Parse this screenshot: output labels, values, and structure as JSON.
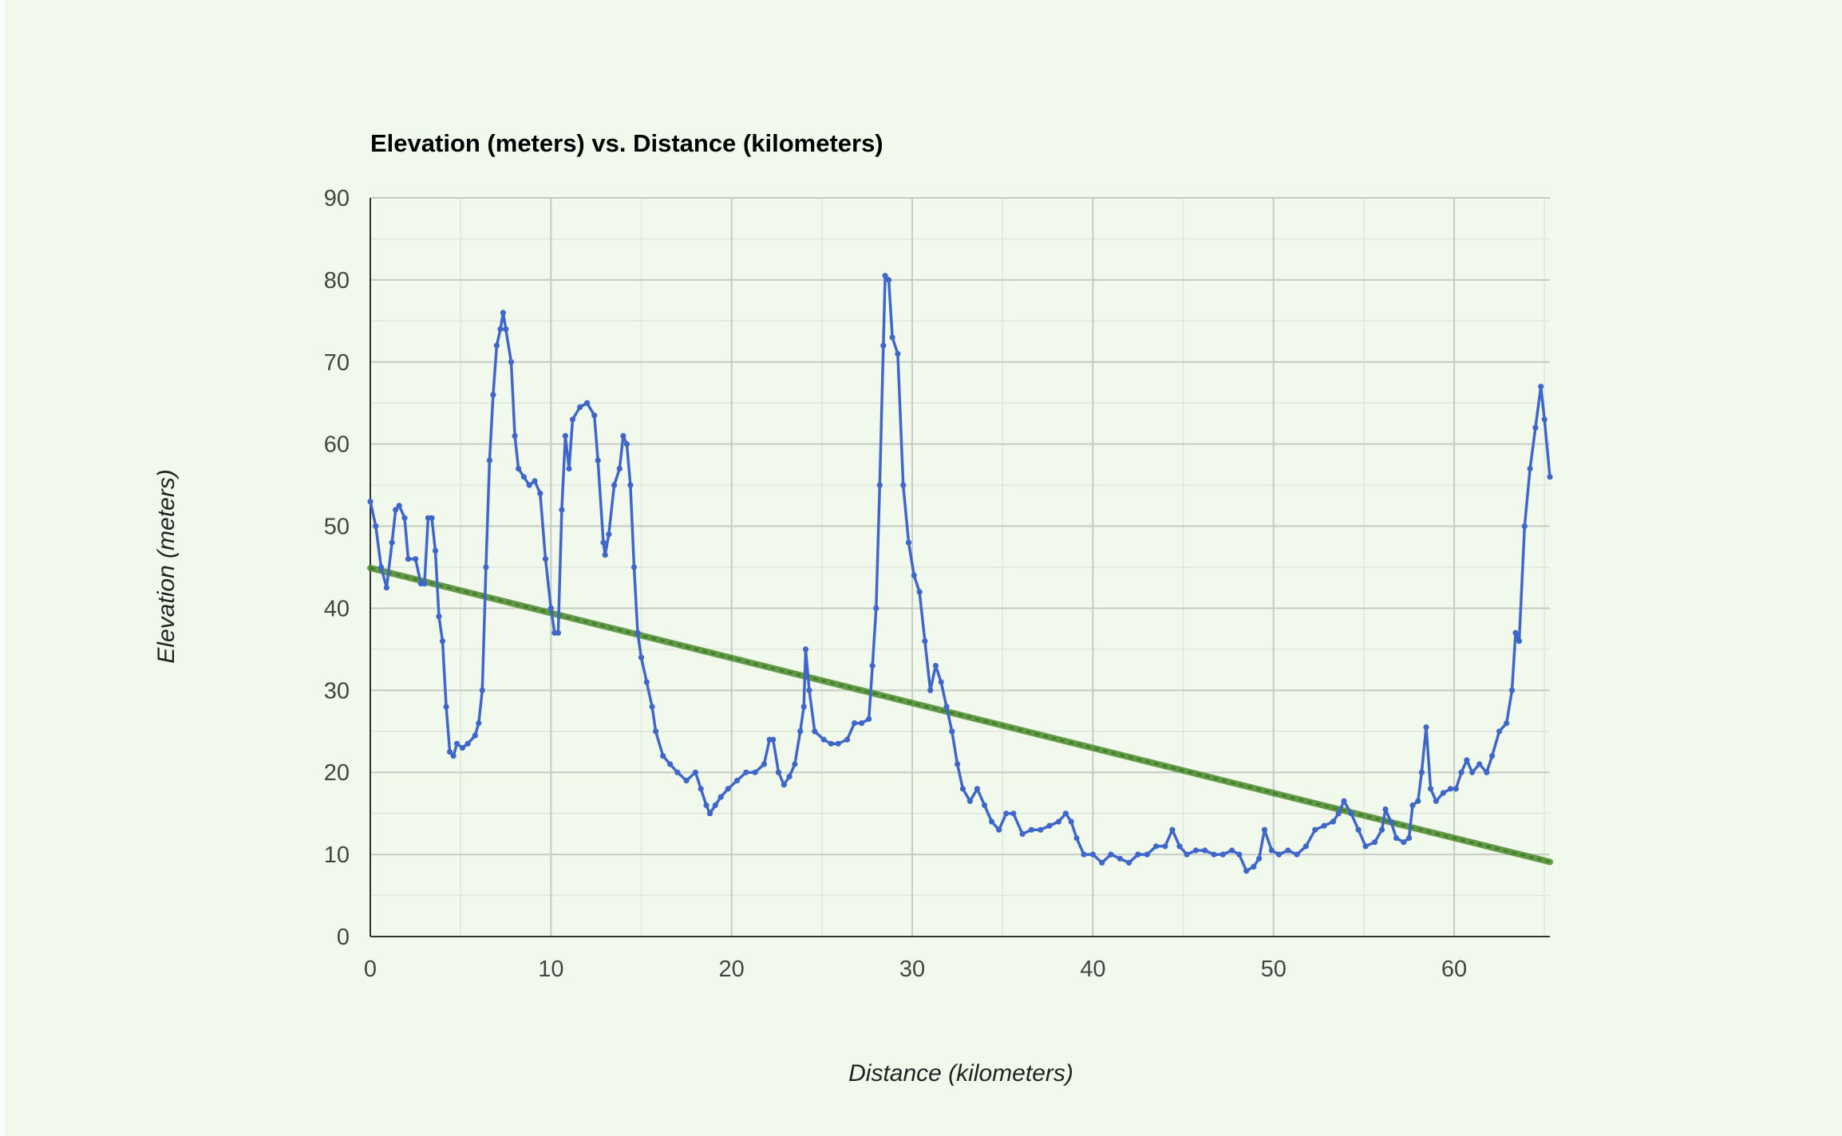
{
  "chart_data": {
    "type": "line",
    "title": "Elevation (meters) vs. Distance (kilometers)",
    "xlabel": "Distance (kilometers)",
    "ylabel": "Elevation (meters)",
    "xlim": [
      0,
      65.3
    ],
    "ylim": [
      0,
      90
    ],
    "x_ticks": [
      "0",
      "10",
      "20",
      "30",
      "40",
      "50",
      "60"
    ],
    "y_ticks": [
      "0",
      "10",
      "20",
      "30",
      "40",
      "50",
      "60",
      "70",
      "80",
      "90"
    ],
    "grid": true,
    "legend": "none",
    "series": [
      {
        "color": "#3f66c9",
        "marker": "dot",
        "points": [
          [
            0,
            53
          ],
          [
            0.3,
            50
          ],
          [
            0.6,
            45
          ],
          [
            0.9,
            42.5
          ],
          [
            1.2,
            48
          ],
          [
            1.4,
            52
          ],
          [
            1.6,
            52.5
          ],
          [
            1.9,
            51
          ],
          [
            2.1,
            46
          ],
          [
            2.5,
            46
          ],
          [
            2.8,
            43
          ],
          [
            3.0,
            43
          ],
          [
            3.2,
            51
          ],
          [
            3.4,
            51
          ],
          [
            3.6,
            47
          ],
          [
            3.8,
            39
          ],
          [
            4.0,
            36
          ],
          [
            4.2,
            28
          ],
          [
            4.4,
            22.5
          ],
          [
            4.6,
            22
          ],
          [
            4.8,
            23.5
          ],
          [
            5.1,
            23
          ],
          [
            5.4,
            23.5
          ],
          [
            5.8,
            24.5
          ],
          [
            6.0,
            26
          ],
          [
            6.2,
            30
          ],
          [
            6.4,
            45
          ],
          [
            6.6,
            58
          ],
          [
            6.8,
            66
          ],
          [
            7.0,
            72
          ],
          [
            7.2,
            74
          ],
          [
            7.35,
            76
          ],
          [
            7.5,
            74
          ],
          [
            7.8,
            70
          ],
          [
            8.0,
            61
          ],
          [
            8.2,
            57
          ],
          [
            8.5,
            56
          ],
          [
            8.8,
            55
          ],
          [
            9.1,
            55.5
          ],
          [
            9.4,
            54
          ],
          [
            9.7,
            46
          ],
          [
            10.0,
            40
          ],
          [
            10.2,
            37
          ],
          [
            10.4,
            37
          ],
          [
            10.6,
            52
          ],
          [
            10.8,
            61
          ],
          [
            11.0,
            57
          ],
          [
            11.2,
            63
          ],
          [
            11.6,
            64.5
          ],
          [
            12.0,
            65
          ],
          [
            12.4,
            63.5
          ],
          [
            12.6,
            58
          ],
          [
            12.9,
            48
          ],
          [
            13.0,
            46.5
          ],
          [
            13.2,
            49
          ],
          [
            13.5,
            55
          ],
          [
            13.8,
            57
          ],
          [
            14.0,
            61
          ],
          [
            14.2,
            60
          ],
          [
            14.4,
            55
          ],
          [
            14.6,
            45
          ],
          [
            14.8,
            37
          ],
          [
            15.0,
            34
          ],
          [
            15.3,
            31
          ],
          [
            15.6,
            28
          ],
          [
            15.8,
            25
          ],
          [
            16.2,
            22
          ],
          [
            16.6,
            21
          ],
          [
            17.0,
            20
          ],
          [
            17.5,
            19
          ],
          [
            18.0,
            20
          ],
          [
            18.3,
            18
          ],
          [
            18.6,
            16
          ],
          [
            18.8,
            15
          ],
          [
            19.1,
            16
          ],
          [
            19.4,
            17
          ],
          [
            19.8,
            18
          ],
          [
            20.3,
            19
          ],
          [
            20.8,
            20
          ],
          [
            21.3,
            20
          ],
          [
            21.8,
            21
          ],
          [
            22.1,
            24
          ],
          [
            22.3,
            24
          ],
          [
            22.6,
            20
          ],
          [
            22.9,
            18.5
          ],
          [
            23.2,
            19.5
          ],
          [
            23.5,
            21
          ],
          [
            23.8,
            25
          ],
          [
            24.0,
            28
          ],
          [
            24.1,
            35
          ],
          [
            24.3,
            30
          ],
          [
            24.6,
            25
          ],
          [
            25.1,
            24
          ],
          [
            25.5,
            23.5
          ],
          [
            25.9,
            23.5
          ],
          [
            26.4,
            24
          ],
          [
            26.8,
            26
          ],
          [
            27.2,
            26
          ],
          [
            27.6,
            26.5
          ],
          [
            27.8,
            33
          ],
          [
            28.0,
            40
          ],
          [
            28.2,
            55
          ],
          [
            28.4,
            72
          ],
          [
            28.5,
            80.5
          ],
          [
            28.7,
            80
          ],
          [
            28.9,
            73
          ],
          [
            29.2,
            71
          ],
          [
            29.5,
            55
          ],
          [
            29.8,
            48
          ],
          [
            30.1,
            44
          ],
          [
            30.4,
            42
          ],
          [
            30.7,
            36
          ],
          [
            31.0,
            30
          ],
          [
            31.3,
            33
          ],
          [
            31.6,
            31
          ],
          [
            31.9,
            28
          ],
          [
            32.2,
            25
          ],
          [
            32.5,
            21
          ],
          [
            32.8,
            18
          ],
          [
            33.2,
            16.5
          ],
          [
            33.6,
            18
          ],
          [
            34.0,
            16
          ],
          [
            34.4,
            14
          ],
          [
            34.8,
            13
          ],
          [
            35.2,
            15
          ],
          [
            35.6,
            15
          ],
          [
            36.1,
            12.5
          ],
          [
            36.6,
            13
          ],
          [
            37.1,
            13
          ],
          [
            37.6,
            13.5
          ],
          [
            38.1,
            14
          ],
          [
            38.5,
            15
          ],
          [
            38.8,
            14
          ],
          [
            39.1,
            12
          ],
          [
            39.5,
            10
          ],
          [
            40.0,
            10
          ],
          [
            40.5,
            9
          ],
          [
            41.0,
            10
          ],
          [
            41.5,
            9.5
          ],
          [
            42.0,
            9
          ],
          [
            42.5,
            10
          ],
          [
            43.0,
            10
          ],
          [
            43.5,
            11
          ],
          [
            44.0,
            11
          ],
          [
            44.4,
            13
          ],
          [
            44.8,
            11
          ],
          [
            45.2,
            10
          ],
          [
            45.7,
            10.5
          ],
          [
            46.2,
            10.5
          ],
          [
            46.7,
            10
          ],
          [
            47.2,
            10
          ],
          [
            47.7,
            10.5
          ],
          [
            48.1,
            10
          ],
          [
            48.5,
            8
          ],
          [
            48.9,
            8.5
          ],
          [
            49.2,
            9.5
          ],
          [
            49.5,
            13
          ],
          [
            49.9,
            10.5
          ],
          [
            50.3,
            10
          ],
          [
            50.8,
            10.5
          ],
          [
            51.3,
            10
          ],
          [
            51.8,
            11
          ],
          [
            52.3,
            13
          ],
          [
            52.8,
            13.5
          ],
          [
            53.3,
            14
          ],
          [
            53.6,
            15
          ],
          [
            53.9,
            16.5
          ],
          [
            54.3,
            15
          ],
          [
            54.7,
            13
          ],
          [
            55.1,
            11
          ],
          [
            55.6,
            11.5
          ],
          [
            56.0,
            13
          ],
          [
            56.2,
            15.5
          ],
          [
            56.5,
            14
          ],
          [
            56.8,
            12
          ],
          [
            57.2,
            11.5
          ],
          [
            57.5,
            12
          ],
          [
            57.7,
            16
          ],
          [
            58.0,
            16.5
          ],
          [
            58.2,
            20
          ],
          [
            58.45,
            25.5
          ],
          [
            58.7,
            18
          ],
          [
            59.0,
            16.5
          ],
          [
            59.4,
            17.5
          ],
          [
            59.8,
            18
          ],
          [
            60.1,
            18
          ],
          [
            60.4,
            20
          ],
          [
            60.7,
            21.5
          ],
          [
            61.0,
            20
          ],
          [
            61.4,
            21
          ],
          [
            61.8,
            20
          ],
          [
            62.1,
            22
          ],
          [
            62.5,
            25
          ],
          [
            62.9,
            26
          ],
          [
            63.2,
            30
          ],
          [
            63.4,
            37
          ],
          [
            63.6,
            36
          ],
          [
            63.9,
            50
          ],
          [
            64.2,
            57
          ],
          [
            64.5,
            62
          ],
          [
            64.8,
            67
          ],
          [
            65.0,
            63
          ],
          [
            65.3,
            56
          ]
        ]
      },
      {
        "color": "#4a8a2c",
        "line_style": "trend",
        "points": [
          [
            0,
            44.9
          ],
          [
            65.3,
            9.1
          ]
        ]
      }
    ]
  }
}
